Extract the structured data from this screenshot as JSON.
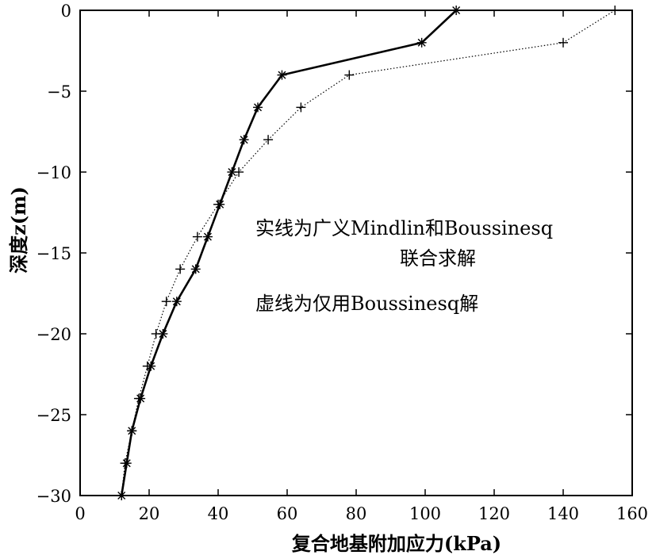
{
  "chart_data": {
    "type": "line",
    "title": "",
    "xlabel": "复合地基附加应力(kPa)",
    "ylabel": "深度z(m)",
    "xlim": [
      0,
      160
    ],
    "ylim": [
      -30,
      0
    ],
    "x_ticks": [
      "0",
      "20",
      "40",
      "60",
      "80",
      "100",
      "120",
      "140",
      "160"
    ],
    "y_ticks": [
      "0",
      "−5",
      "−10",
      "−15",
      "−20",
      "−25",
      "−30"
    ],
    "grid": false,
    "series": [
      {
        "style": "solid",
        "marker": "asterisk",
        "color": "#000000",
        "points": [
          {
            "x": 109,
            "y": 0
          },
          {
            "x": 99,
            "y": -2
          },
          {
            "x": 58.5,
            "y": -4
          },
          {
            "x": 51.5,
            "y": -6
          },
          {
            "x": 47.5,
            "y": -8
          },
          {
            "x": 44,
            "y": -10
          },
          {
            "x": 40.5,
            "y": -12
          },
          {
            "x": 37,
            "y": -14
          },
          {
            "x": 33.5,
            "y": -16
          },
          {
            "x": 28,
            "y": -18
          },
          {
            "x": 24,
            "y": -20
          },
          {
            "x": 20.5,
            "y": -22
          },
          {
            "x": 17.5,
            "y": -24
          },
          {
            "x": 15,
            "y": -26
          },
          {
            "x": 13.5,
            "y": -28
          },
          {
            "x": 12,
            "y": -30
          }
        ]
      },
      {
        "style": "dotted",
        "marker": "plus",
        "color": "#000000",
        "points": [
          {
            "x": 155,
            "y": 0
          },
          {
            "x": 140,
            "y": -2
          },
          {
            "x": 78,
            "y": -4
          },
          {
            "x": 64,
            "y": -6
          },
          {
            "x": 54.5,
            "y": -8
          },
          {
            "x": 46,
            "y": -10
          },
          {
            "x": 40,
            "y": -12
          },
          {
            "x": 34,
            "y": -14
          },
          {
            "x": 29,
            "y": -16
          },
          {
            "x": 25,
            "y": -18
          },
          {
            "x": 22,
            "y": -20
          },
          {
            "x": 19.5,
            "y": -22
          },
          {
            "x": 17,
            "y": -24
          },
          {
            "x": 15,
            "y": -26
          },
          {
            "x": 13,
            "y": -28
          },
          {
            "x": 12,
            "y": -30
          }
        ]
      }
    ],
    "annotations": [
      "实线为广义Mindlin和Boussinesq",
      "联合求解",
      "虚线为仅用Boussinesq解"
    ]
  }
}
